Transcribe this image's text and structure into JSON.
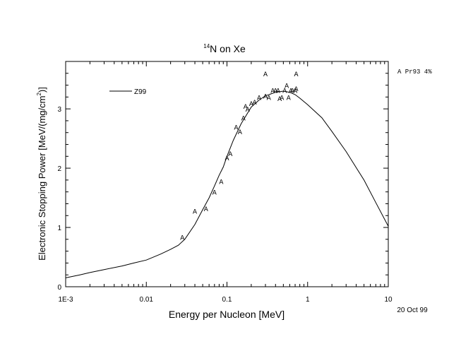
{
  "chart_data": {
    "type": "scatter",
    "title_sup": "14",
    "title_main": "N on Xe",
    "xlabel": "Energy per Nucleon [MeV]",
    "ylabel_pre": "Electronic Stopping Power [MeV/(mg/cm",
    "ylabel_sup": "2",
    "ylabel_post": ")]",
    "xscale": "log",
    "xlim": [
      0.001,
      10
    ],
    "ylim": [
      0,
      3.8
    ],
    "grid": false,
    "x_ticks": [
      {
        "value": 0.001,
        "label": "1E-3"
      },
      {
        "value": 0.01,
        "label": "0.01"
      },
      {
        "value": 0.1,
        "label": "0.1"
      },
      {
        "value": 1,
        "label": "1"
      },
      {
        "value": 10,
        "label": "10"
      }
    ],
    "y_ticks": [
      {
        "value": 0,
        "label": "0"
      },
      {
        "value": 1,
        "label": "1"
      },
      {
        "value": 2,
        "label": "2"
      },
      {
        "value": 3,
        "label": "3"
      }
    ],
    "legend_line_label": "Z99",
    "side_legend": "A Pr93 4%",
    "date_note": "20 Oct 99",
    "marker": "A",
    "series": [
      {
        "name": "Z99",
        "kind": "line",
        "x": [
          0.001,
          0.0015,
          0.002,
          0.003,
          0.005,
          0.007,
          0.01,
          0.015,
          0.02,
          0.025,
          0.03,
          0.04,
          0.05,
          0.06,
          0.07,
          0.08,
          0.09,
          0.1,
          0.12,
          0.15,
          0.2,
          0.25,
          0.3,
          0.4,
          0.5,
          0.6,
          0.7,
          0.8,
          1.0,
          1.5,
          2.0,
          3.0,
          5.0,
          7.0,
          10.0
        ],
        "y": [
          0.15,
          0.2,
          0.24,
          0.29,
          0.35,
          0.4,
          0.45,
          0.55,
          0.63,
          0.7,
          0.8,
          1.05,
          1.3,
          1.5,
          1.7,
          1.88,
          2.02,
          2.2,
          2.47,
          2.75,
          3.03,
          3.15,
          3.22,
          3.28,
          3.3,
          3.28,
          3.24,
          3.18,
          3.07,
          2.85,
          2.62,
          2.28,
          1.8,
          1.42,
          1.02
        ]
      },
      {
        "name": "Pr93",
        "kind": "points",
        "x": [
          0.028,
          0.04,
          0.055,
          0.07,
          0.085,
          0.1,
          0.11,
          0.13,
          0.145,
          0.16,
          0.17,
          0.18,
          0.2,
          0.22,
          0.25,
          0.3,
          0.33,
          0.37,
          0.4,
          0.43,
          0.45,
          0.48,
          0.52,
          0.55,
          0.58,
          0.62,
          0.65,
          0.7,
          0.72,
          0.3,
          0.72
        ],
        "y": [
          0.84,
          1.28,
          1.32,
          1.6,
          1.78,
          2.18,
          2.25,
          2.7,
          2.62,
          2.85,
          3.05,
          3.0,
          3.1,
          3.12,
          3.2,
          3.22,
          3.2,
          3.32,
          3.32,
          3.32,
          3.18,
          3.2,
          3.32,
          3.4,
          3.2,
          3.32,
          3.32,
          3.32,
          3.6,
          3.6,
          3.35
        ]
      }
    ]
  }
}
